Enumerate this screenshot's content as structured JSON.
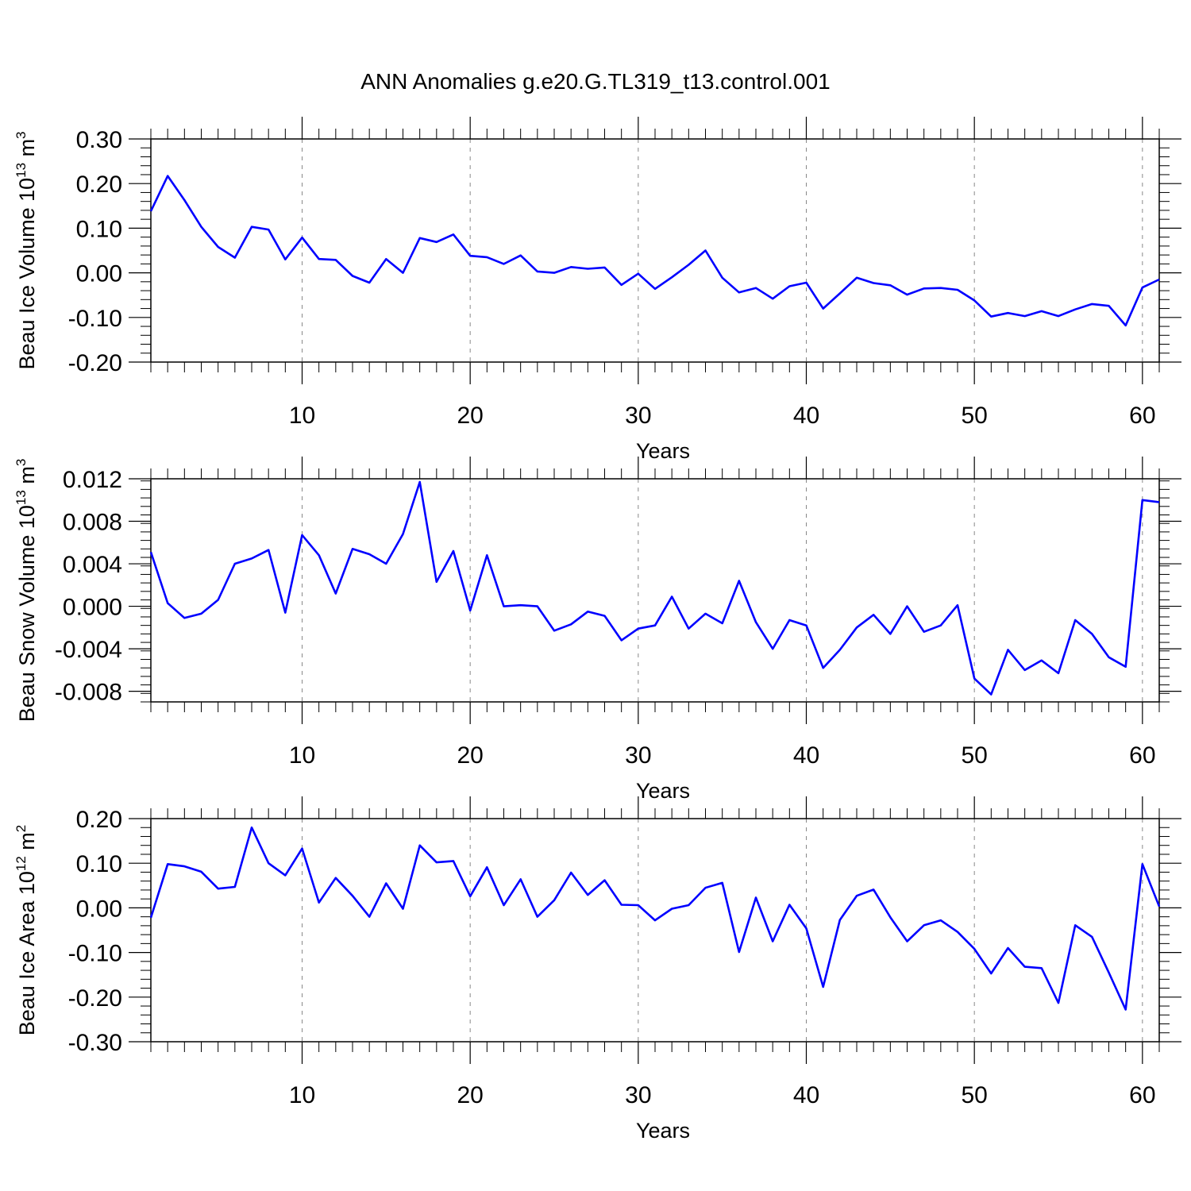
{
  "figure_title": "ANN Anomalies g.e20.G.TL319_t13.control.001",
  "colors": {
    "line": "#0000ff",
    "axis": "#000000",
    "grid": "#888888"
  },
  "chart_data": [
    {
      "type": "line",
      "ylabel_main": "Beau Ice Volume 10",
      "ylabel_exp": "13",
      "ylabel_unit": " m",
      "ylabel_unit_exp": "3",
      "xlabel": "Years",
      "xlim": [
        1,
        61
      ],
      "ylim": [
        -0.2,
        0.3
      ],
      "xticks": [
        10,
        20,
        30,
        40,
        50,
        60
      ],
      "yticks": [
        -0.2,
        -0.1,
        0.0,
        0.1,
        0.2,
        0.3
      ],
      "ytick_labels": [
        "-0.20",
        "-0.10",
        "0.00",
        "0.10",
        "0.20",
        "0.30"
      ],
      "grid": "x-dashed",
      "x": [
        1,
        2,
        3,
        4,
        5,
        6,
        7,
        8,
        9,
        10,
        11,
        12,
        13,
        14,
        15,
        16,
        17,
        18,
        19,
        20,
        21,
        22,
        23,
        24,
        25,
        26,
        27,
        28,
        29,
        30,
        31,
        32,
        33,
        34,
        35,
        36,
        37,
        38,
        39,
        40,
        41,
        42,
        43,
        44,
        45,
        46,
        47,
        48,
        49,
        50,
        51,
        52,
        53,
        54,
        55,
        56,
        57,
        58,
        59,
        60,
        61
      ],
      "y": [
        0.138,
        0.217,
        0.163,
        0.103,
        0.058,
        0.034,
        0.103,
        0.097,
        0.03,
        0.079,
        0.031,
        0.029,
        -0.007,
        -0.022,
        0.031,
        0.0,
        0.078,
        0.069,
        0.086,
        0.038,
        0.035,
        0.02,
        0.039,
        0.003,
        0.0,
        0.013,
        0.009,
        0.012,
        -0.027,
        -0.002,
        -0.036,
        -0.01,
        0.018,
        0.05,
        -0.011,
        -0.044,
        -0.034,
        -0.058,
        -0.03,
        -0.022,
        -0.08,
        -0.046,
        -0.011,
        -0.023,
        -0.028,
        -0.049,
        -0.035,
        -0.034,
        -0.038,
        -0.062,
        -0.098,
        -0.09,
        -0.097,
        -0.086,
        -0.097,
        -0.082,
        -0.07,
        -0.074,
        -0.118,
        -0.033,
        -0.015
      ]
    },
    {
      "type": "line",
      "ylabel_main": "Beau Snow Volume 10",
      "ylabel_exp": "13",
      "ylabel_unit": " m",
      "ylabel_unit_exp": "3",
      "xlabel": "Years",
      "xlim": [
        1,
        61
      ],
      "ylim": [
        -0.009,
        0.012
      ],
      "xticks": [
        10,
        20,
        30,
        40,
        50,
        60
      ],
      "yticks": [
        -0.008,
        -0.004,
        0.0,
        0.004,
        0.008,
        0.012
      ],
      "ytick_labels": [
        "-0.008",
        "-0.004",
        "0.000",
        "0.004",
        "0.008",
        "0.012"
      ],
      "grid": "x-dashed",
      "x": [
        1,
        2,
        3,
        4,
        5,
        6,
        7,
        8,
        9,
        10,
        11,
        12,
        13,
        14,
        15,
        16,
        17,
        18,
        19,
        20,
        21,
        22,
        23,
        24,
        25,
        26,
        27,
        28,
        29,
        30,
        31,
        32,
        33,
        34,
        35,
        36,
        37,
        38,
        39,
        40,
        41,
        42,
        43,
        44,
        45,
        46,
        47,
        48,
        49,
        50,
        51,
        52,
        53,
        54,
        55,
        56,
        57,
        58,
        59,
        60,
        61
      ],
      "y": [
        0.0051,
        0.0003,
        -0.0011,
        -0.0007,
        0.0006,
        0.004,
        0.0045,
        0.0053,
        -0.0006,
        0.0067,
        0.0048,
        0.0012,
        0.0054,
        0.0049,
        0.004,
        0.0068,
        0.0117,
        0.0023,
        0.0052,
        -0.0004,
        0.0048,
        0.0,
        0.0001,
        0.0,
        -0.0023,
        -0.0017,
        -0.0005,
        -0.0009,
        -0.0032,
        -0.0021,
        -0.0018,
        0.0009,
        -0.0021,
        -0.0007,
        -0.0016,
        0.0024,
        -0.0015,
        -0.004,
        -0.0013,
        -0.0018,
        -0.0058,
        -0.0041,
        -0.002,
        -0.0008,
        -0.0026,
        0.0,
        -0.0024,
        -0.0018,
        0.0001,
        -0.0068,
        -0.0083,
        -0.0041,
        -0.006,
        -0.0051,
        -0.0063,
        -0.0013,
        -0.0026,
        -0.0048,
        -0.0057,
        0.01,
        0.0098
      ]
    },
    {
      "type": "line",
      "ylabel_main": "Beau Ice Area 10",
      "ylabel_exp": "12",
      "ylabel_unit": " m",
      "ylabel_unit_exp": "2",
      "xlabel": "Years",
      "xlim": [
        1,
        61
      ],
      "ylim": [
        -0.3,
        0.2
      ],
      "xticks": [
        10,
        20,
        30,
        40,
        50,
        60
      ],
      "yticks": [
        -0.3,
        -0.2,
        -0.1,
        0.0,
        0.1,
        0.2
      ],
      "ytick_labels": [
        "-0.30",
        "-0.20",
        "-0.10",
        "0.00",
        "0.10",
        "0.20"
      ],
      "grid": "x-dashed",
      "x": [
        1,
        2,
        3,
        4,
        5,
        6,
        7,
        8,
        9,
        10,
        11,
        12,
        13,
        14,
        15,
        16,
        17,
        18,
        19,
        20,
        21,
        22,
        23,
        24,
        25,
        26,
        27,
        28,
        29,
        30,
        31,
        32,
        33,
        34,
        35,
        36,
        37,
        38,
        39,
        40,
        41,
        42,
        43,
        44,
        45,
        46,
        47,
        48,
        49,
        50,
        51,
        52,
        53,
        54,
        55,
        56,
        57,
        58,
        59,
        60,
        61
      ],
      "y": [
        -0.022,
        0.098,
        0.093,
        0.081,
        0.043,
        0.047,
        0.18,
        0.1,
        0.073,
        0.133,
        0.012,
        0.067,
        0.027,
        -0.02,
        0.055,
        -0.002,
        0.14,
        0.102,
        0.105,
        0.026,
        0.091,
        0.006,
        0.064,
        -0.02,
        0.017,
        0.079,
        0.029,
        0.062,
        0.007,
        0.006,
        -0.028,
        -0.002,
        0.006,
        0.045,
        0.056,
        -0.099,
        0.023,
        -0.075,
        0.007,
        -0.046,
        -0.177,
        -0.027,
        0.027,
        0.041,
        -0.021,
        -0.075,
        -0.039,
        -0.028,
        -0.054,
        -0.092,
        -0.147,
        -0.09,
        -0.132,
        -0.135,
        -0.213,
        -0.039,
        -0.065,
        -0.145,
        -0.228,
        0.098,
        0.003
      ]
    }
  ]
}
